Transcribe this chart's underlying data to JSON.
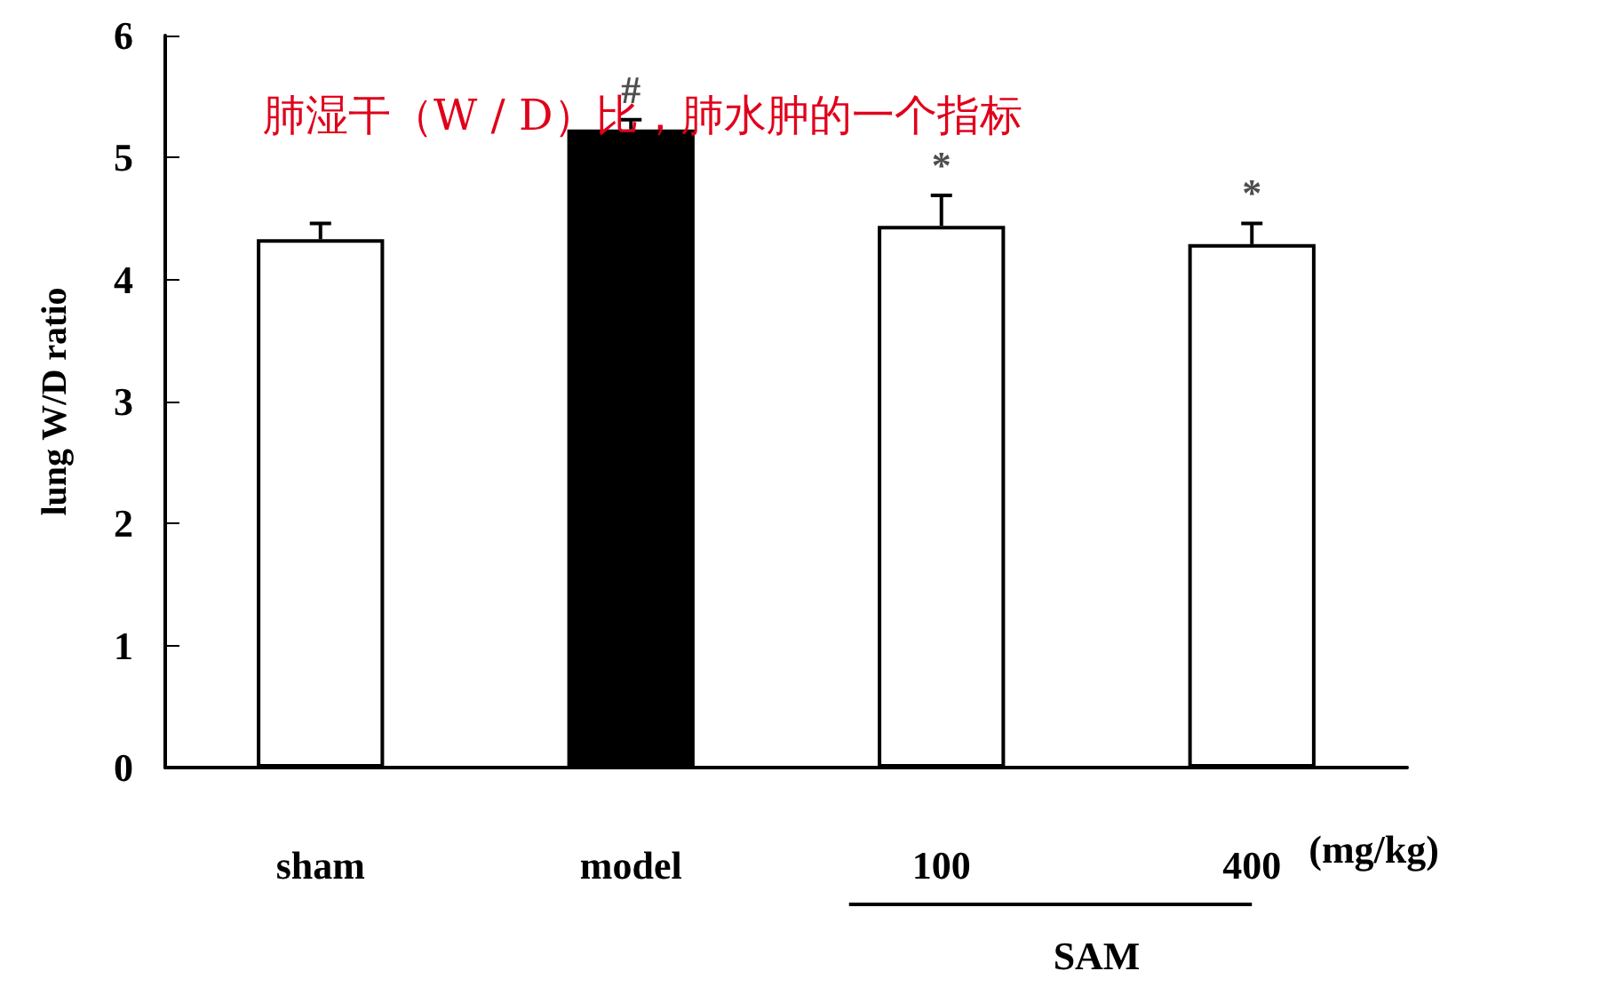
{
  "chart_data": {
    "type": "bar",
    "ylabel": "lung W/D ratio",
    "categories": [
      "sham",
      "model",
      "100",
      "400"
    ],
    "values": [
      4.33,
      5.23,
      4.44,
      4.29
    ],
    "colors": [
      "#ffffff",
      "#000000",
      "#ffffff",
      "#ffffff"
    ],
    "errors": [
      [
        4.33,
        4.46
      ],
      [
        5.23,
        5.31
      ],
      [
        4.44,
        4.69
      ],
      [
        4.29,
        4.46
      ]
    ],
    "ylim": [
      0,
      6
    ],
    "yticks": [
      0,
      1,
      2,
      3,
      4,
      5,
      6
    ],
    "grid": false,
    "annotations": [
      "肺湿干（W / D）比，肺水肿的一个指标",
      "(mg/kg)",
      "SAM",
      {
        "text": "#",
        "x": "model",
        "y": 5.31
      },
      {
        "text": "*",
        "x": "100",
        "y": 4.69
      },
      {
        "text": "*",
        "x": "400",
        "y": 4.46
      }
    ]
  }
}
